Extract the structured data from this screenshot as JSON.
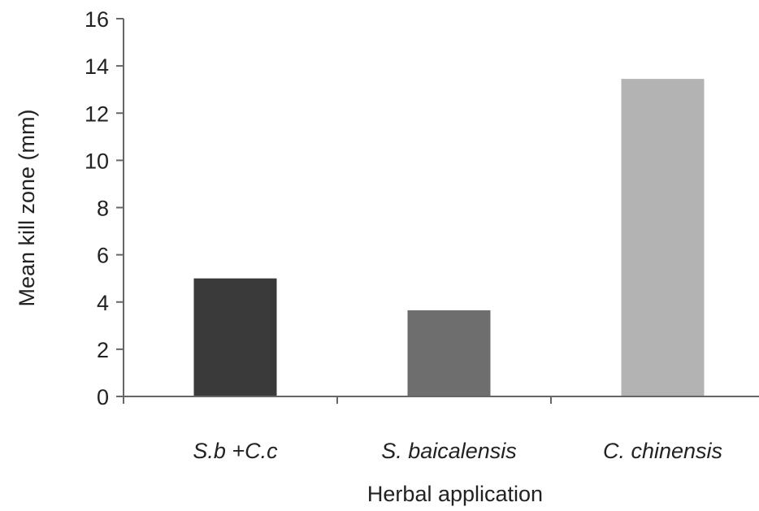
{
  "chart_data": {
    "type": "bar",
    "categories": [
      "S.b +C.c",
      "S. baicalensis",
      "C. chinensis"
    ],
    "values": [
      5.0,
      3.65,
      13.45
    ],
    "colors": [
      "#3a3a3a",
      "#6e6e6e",
      "#b3b3b3"
    ],
    "xlabel": "Herbal application",
    "ylabel": "Mean kill zone (mm)",
    "ylim": [
      0,
      16
    ],
    "yticks": [
      0,
      2,
      4,
      6,
      8,
      10,
      12,
      14,
      16
    ],
    "grid": false
  }
}
